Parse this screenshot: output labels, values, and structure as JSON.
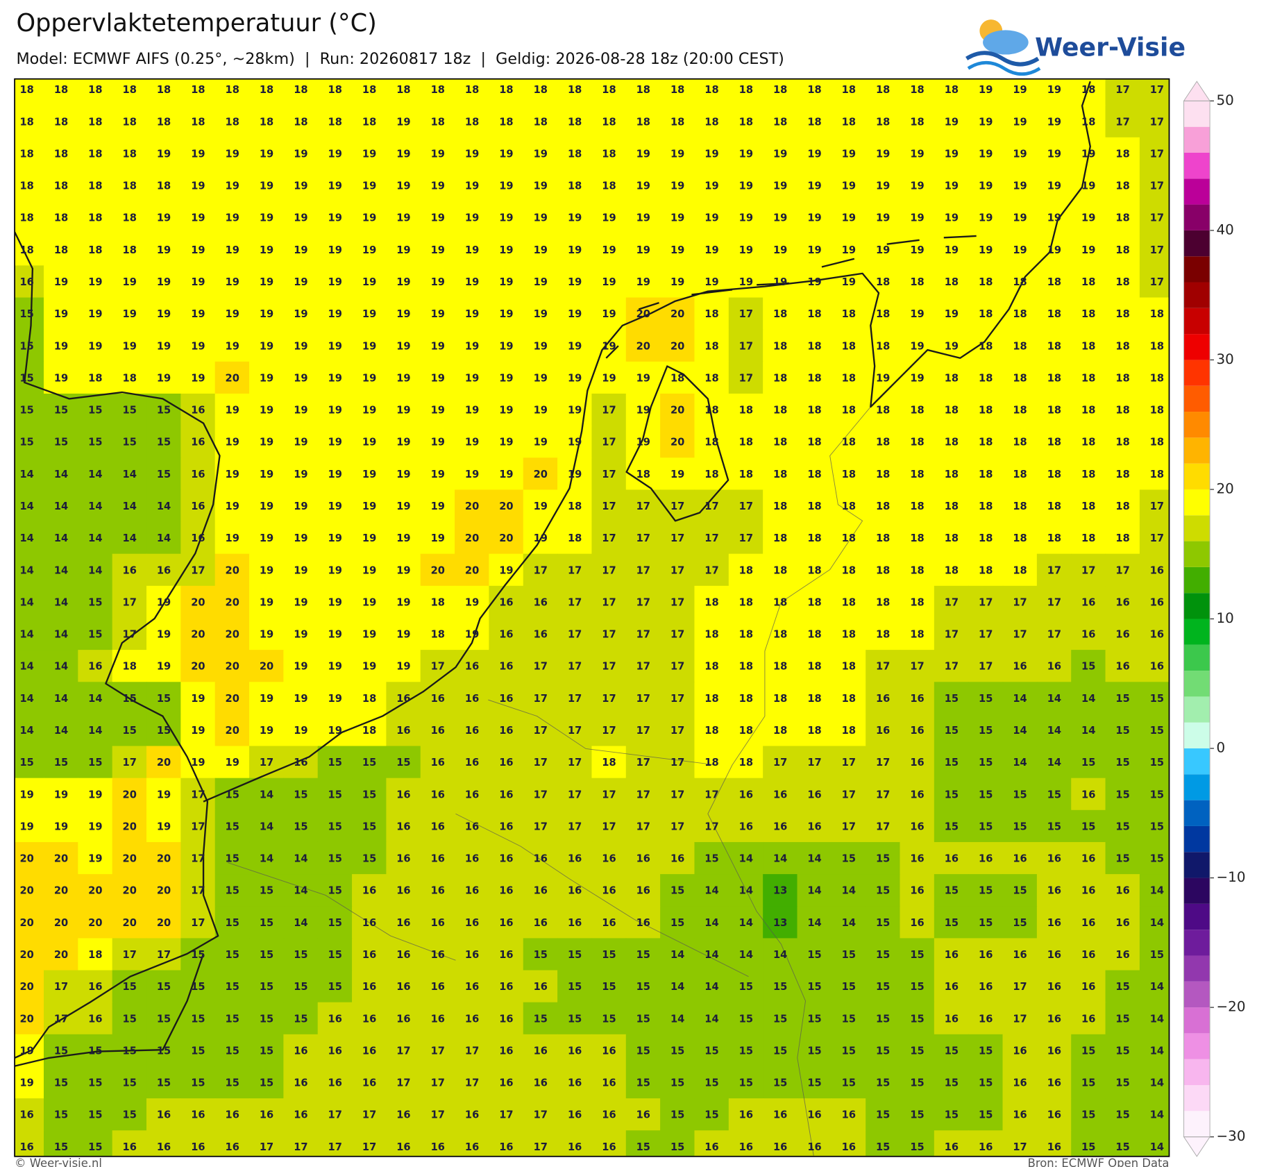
{
  "header": {
    "title": "Oppervlaktetemperatuur (°C)",
    "subtitle": "Model: ECMWF AIFS (0.25°, ~28km)  |  Run: 20260817 18z  |  Geldig: 2026-08-28 18z (20:00 CEST)"
  },
  "logo": "Weer-Visie",
  "map": {
    "values": [
      [
        18,
        18,
        18,
        18,
        18,
        18,
        18,
        18,
        18,
        18,
        18,
        18,
        18,
        18,
        18,
        18,
        18,
        18,
        18,
        18,
        18,
        18,
        18,
        18,
        18,
        18,
        18,
        18,
        19,
        19,
        19,
        18,
        17,
        17
      ],
      [
        18,
        18,
        18,
        18,
        18,
        18,
        18,
        18,
        18,
        18,
        18,
        19,
        18,
        18,
        18,
        18,
        18,
        18,
        18,
        18,
        18,
        18,
        18,
        18,
        18,
        18,
        18,
        19,
        19,
        19,
        19,
        18,
        17,
        17
      ],
      [
        18,
        18,
        18,
        18,
        19,
        19,
        19,
        19,
        19,
        19,
        19,
        19,
        19,
        19,
        19,
        19,
        18,
        18,
        19,
        19,
        19,
        19,
        19,
        19,
        19,
        19,
        19,
        19,
        19,
        19,
        19,
        19,
        18,
        17
      ],
      [
        18,
        18,
        18,
        18,
        18,
        19,
        19,
        19,
        19,
        19,
        19,
        19,
        19,
        19,
        19,
        19,
        18,
        18,
        19,
        19,
        19,
        19,
        19,
        19,
        19,
        19,
        19,
        19,
        19,
        19,
        19,
        19,
        18,
        17
      ],
      [
        18,
        18,
        18,
        18,
        19,
        19,
        19,
        19,
        19,
        19,
        19,
        19,
        19,
        19,
        19,
        19,
        19,
        19,
        19,
        19,
        19,
        19,
        19,
        19,
        19,
        19,
        19,
        19,
        19,
        19,
        19,
        19,
        18,
        17
      ],
      [
        18,
        18,
        18,
        18,
        19,
        19,
        19,
        19,
        19,
        19,
        19,
        19,
        19,
        19,
        19,
        19,
        19,
        19,
        19,
        19,
        19,
        19,
        19,
        19,
        19,
        19,
        19,
        19,
        19,
        19,
        19,
        19,
        18,
        17
      ],
      [
        16,
        19,
        19,
        19,
        19,
        19,
        19,
        19,
        19,
        19,
        19,
        19,
        19,
        19,
        19,
        19,
        19,
        19,
        19,
        19,
        19,
        19,
        19,
        19,
        19,
        18,
        18,
        18,
        18,
        18,
        18,
        18,
        18,
        17
      ],
      [
        15,
        19,
        19,
        19,
        19,
        19,
        19,
        19,
        19,
        19,
        19,
        19,
        19,
        19,
        19,
        19,
        19,
        19,
        20,
        20,
        18,
        17,
        18,
        18,
        18,
        18,
        19,
        19,
        18,
        18,
        18,
        18,
        18,
        18
      ],
      [
        15,
        19,
        19,
        19,
        19,
        19,
        19,
        19,
        19,
        19,
        19,
        19,
        19,
        19,
        19,
        19,
        19,
        19,
        20,
        20,
        18,
        17,
        18,
        18,
        18,
        18,
        19,
        19,
        18,
        18,
        18,
        18,
        18,
        18
      ],
      [
        15,
        19,
        18,
        18,
        19,
        19,
        20,
        19,
        19,
        19,
        19,
        19,
        19,
        19,
        19,
        19,
        19,
        19,
        19,
        18,
        18,
        17,
        18,
        18,
        18,
        19,
        19,
        18,
        18,
        18,
        18,
        18,
        18,
        18
      ],
      [
        15,
        15,
        15,
        15,
        15,
        16,
        19,
        19,
        19,
        19,
        19,
        19,
        19,
        19,
        19,
        19,
        19,
        17,
        19,
        20,
        18,
        18,
        18,
        18,
        18,
        18,
        18,
        18,
        18,
        18,
        18,
        18,
        18,
        18
      ],
      [
        15,
        15,
        15,
        15,
        15,
        16,
        19,
        19,
        19,
        19,
        19,
        19,
        19,
        19,
        19,
        19,
        19,
        17,
        19,
        20,
        18,
        18,
        18,
        18,
        18,
        18,
        18,
        18,
        18,
        18,
        18,
        18,
        18,
        18
      ],
      [
        14,
        14,
        14,
        14,
        15,
        16,
        19,
        19,
        19,
        19,
        19,
        19,
        19,
        19,
        19,
        20,
        19,
        17,
        18,
        19,
        18,
        18,
        18,
        18,
        18,
        18,
        18,
        18,
        18,
        18,
        18,
        18,
        18,
        18
      ],
      [
        14,
        14,
        14,
        14,
        14,
        16,
        19,
        19,
        19,
        19,
        19,
        19,
        19,
        20,
        20,
        19,
        18,
        17,
        17,
        17,
        17,
        17,
        18,
        18,
        18,
        18,
        18,
        18,
        18,
        18,
        18,
        18,
        18,
        17
      ],
      [
        14,
        14,
        14,
        14,
        14,
        16,
        19,
        19,
        19,
        19,
        19,
        19,
        19,
        20,
        20,
        19,
        18,
        17,
        17,
        17,
        17,
        17,
        18,
        18,
        18,
        18,
        18,
        18,
        18,
        18,
        18,
        18,
        18,
        17
      ],
      [
        14,
        14,
        14,
        16,
        16,
        17,
        20,
        19,
        19,
        19,
        19,
        19,
        20,
        20,
        19,
        17,
        17,
        17,
        17,
        17,
        17,
        18,
        18,
        18,
        18,
        18,
        18,
        18,
        18,
        18,
        17,
        17,
        17,
        16
      ],
      [
        14,
        14,
        15,
        17,
        19,
        20,
        20,
        19,
        19,
        19,
        19,
        19,
        18,
        19,
        16,
        16,
        17,
        17,
        17,
        17,
        18,
        18,
        18,
        18,
        18,
        18,
        18,
        17,
        17,
        17,
        17,
        16,
        16,
        16
      ],
      [
        14,
        14,
        15,
        17,
        19,
        20,
        20,
        19,
        19,
        19,
        19,
        19,
        18,
        19,
        16,
        16,
        17,
        17,
        17,
        17,
        18,
        18,
        18,
        18,
        18,
        18,
        18,
        17,
        17,
        17,
        17,
        16,
        16,
        16
      ],
      [
        14,
        14,
        16,
        18,
        19,
        20,
        20,
        20,
        19,
        19,
        19,
        19,
        17,
        16,
        16,
        17,
        17,
        17,
        17,
        17,
        18,
        18,
        18,
        18,
        18,
        17,
        17,
        17,
        17,
        16,
        16,
        15,
        16,
        16
      ],
      [
        14,
        14,
        14,
        15,
        15,
        19,
        20,
        19,
        19,
        19,
        18,
        16,
        16,
        16,
        16,
        17,
        17,
        17,
        17,
        17,
        18,
        18,
        18,
        18,
        18,
        16,
        16,
        15,
        15,
        14,
        14,
        14,
        15,
        15
      ],
      [
        14,
        14,
        14,
        15,
        15,
        19,
        20,
        19,
        19,
        19,
        18,
        16,
        16,
        16,
        16,
        17,
        17,
        17,
        17,
        17,
        18,
        18,
        18,
        18,
        18,
        16,
        16,
        15,
        15,
        14,
        14,
        14,
        15,
        15
      ],
      [
        15,
        15,
        15,
        17,
        20,
        19,
        19,
        17,
        16,
        15,
        15,
        15,
        16,
        16,
        16,
        17,
        17,
        18,
        17,
        17,
        18,
        18,
        17,
        17,
        17,
        17,
        16,
        15,
        15,
        14,
        14,
        15,
        15,
        15
      ],
      [
        19,
        19,
        19,
        20,
        19,
        17,
        15,
        14,
        15,
        15,
        15,
        16,
        16,
        16,
        16,
        17,
        17,
        17,
        17,
        17,
        17,
        16,
        16,
        16,
        17,
        17,
        16,
        15,
        15,
        15,
        15,
        16,
        15,
        15
      ],
      [
        19,
        19,
        19,
        20,
        19,
        17,
        15,
        14,
        15,
        15,
        15,
        16,
        16,
        16,
        16,
        17,
        17,
        17,
        17,
        17,
        17,
        16,
        16,
        16,
        17,
        17,
        16,
        15,
        15,
        15,
        15,
        15,
        15,
        15
      ],
      [
        20,
        20,
        19,
        20,
        20,
        17,
        15,
        14,
        14,
        15,
        15,
        16,
        16,
        16,
        16,
        16,
        16,
        16,
        16,
        16,
        15,
        14,
        14,
        14,
        15,
        15,
        16,
        16,
        16,
        16,
        16,
        16,
        15,
        15
      ],
      [
        20,
        20,
        20,
        20,
        20,
        17,
        15,
        15,
        14,
        15,
        16,
        16,
        16,
        16,
        16,
        16,
        16,
        16,
        16,
        15,
        14,
        14,
        13,
        14,
        14,
        15,
        16,
        15,
        15,
        15,
        16,
        16,
        16,
        14
      ],
      [
        20,
        20,
        20,
        20,
        20,
        17,
        15,
        15,
        14,
        15,
        16,
        16,
        16,
        16,
        16,
        16,
        16,
        16,
        16,
        15,
        14,
        14,
        13,
        14,
        14,
        15,
        16,
        15,
        15,
        15,
        16,
        16,
        16,
        14
      ],
      [
        20,
        20,
        18,
        17,
        17,
        15,
        15,
        15,
        15,
        15,
        16,
        16,
        16,
        16,
        16,
        15,
        15,
        15,
        15,
        14,
        14,
        14,
        14,
        15,
        15,
        15,
        15,
        16,
        16,
        16,
        16,
        16,
        16,
        15
      ],
      [
        20,
        17,
        16,
        15,
        15,
        15,
        15,
        15,
        15,
        15,
        16,
        16,
        16,
        16,
        16,
        16,
        15,
        15,
        15,
        14,
        14,
        15,
        15,
        15,
        15,
        15,
        15,
        16,
        16,
        17,
        16,
        16,
        15,
        14
      ],
      [
        20,
        17,
        16,
        15,
        15,
        15,
        15,
        15,
        15,
        16,
        16,
        16,
        16,
        16,
        16,
        15,
        15,
        15,
        15,
        14,
        14,
        15,
        15,
        15,
        15,
        15,
        15,
        16,
        16,
        17,
        16,
        16,
        15,
        14
      ],
      [
        19,
        15,
        15,
        15,
        15,
        15,
        15,
        15,
        16,
        16,
        16,
        17,
        17,
        17,
        16,
        16,
        16,
        16,
        15,
        15,
        15,
        15,
        15,
        15,
        15,
        15,
        15,
        15,
        15,
        16,
        16,
        15,
        15,
        14
      ],
      [
        19,
        15,
        15,
        15,
        15,
        15,
        15,
        15,
        16,
        16,
        16,
        17,
        17,
        17,
        16,
        16,
        16,
        16,
        15,
        15,
        15,
        15,
        15,
        15,
        15,
        15,
        15,
        15,
        15,
        16,
        16,
        15,
        15,
        14
      ],
      [
        16,
        15,
        15,
        15,
        16,
        16,
        16,
        16,
        16,
        17,
        17,
        16,
        17,
        16,
        17,
        17,
        16,
        16,
        16,
        15,
        15,
        16,
        16,
        16,
        16,
        15,
        15,
        15,
        15,
        16,
        16,
        15,
        15,
        14
      ],
      [
        16,
        15,
        15,
        16,
        16,
        16,
        16,
        17,
        17,
        17,
        17,
        16,
        16,
        16,
        16,
        17,
        16,
        16,
        15,
        15,
        16,
        16,
        16,
        16,
        16,
        15,
        15,
        16,
        16,
        17,
        16,
        15,
        15,
        14
      ]
    ],
    "colorbar": {
      "lim": [
        -30,
        50
      ],
      "ticks": [
        50,
        40,
        30,
        20,
        10,
        0,
        {
          "value": -10,
          "label": "−10"
        },
        {
          "value": -20,
          "label": "−20"
        },
        {
          "value": -30,
          "label": "−30"
        }
      ],
      "colors": [
        "#fdf2fc",
        "#fcd9f6",
        "#f8b6ee",
        "#ee90e4",
        "#d870d4",
        "#b458c0",
        "#9238ae",
        "#6e1c9c",
        "#4e0a86",
        "#2c0660",
        "#10186a",
        "#0038a0",
        "#0062c0",
        "#009ae4",
        "#38c8ff",
        "#ccfde8",
        "#a2eeae",
        "#72dc74",
        "#3cc84c",
        "#00b41e",
        "#00920c",
        "#42ae00",
        "#8ec800",
        "#cedc00",
        "#ffff00",
        "#ffdc00",
        "#ffb400",
        "#ff8a00",
        "#ff5c00",
        "#ff3400",
        "#ee0000",
        "#c80000",
        "#a00000",
        "#7a0000",
        "#4c0030",
        "#880068",
        "#bb0099",
        "#ee44cc",
        "#f8a0d8",
        "#fde0f0"
      ]
    }
  },
  "footer": {
    "left": "© Weer-visie.nl",
    "right": "Bron: ECMWF Open Data"
  }
}
